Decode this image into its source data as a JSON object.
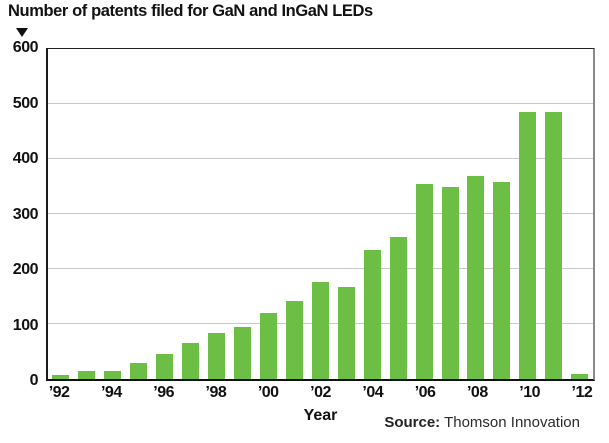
{
  "title": "Number of patents filed for GaN and InGaN LEDs",
  "xlabel": "Year",
  "source": {
    "label": "Source:",
    "text": "Thomson Innovation"
  },
  "colors": {
    "bar": "#6cbe45",
    "grid": "#c8c8c8",
    "axis": "#111111",
    "frame_right": "#8a8a8a",
    "text": "#111111"
  },
  "chart_data": {
    "type": "bar",
    "title": "Number of patents filed for GaN and InGaN LEDs",
    "xlabel": "Year",
    "ylabel": "Number of patents filed",
    "x": [
      1992,
      1993,
      1994,
      1995,
      1996,
      1997,
      1998,
      1999,
      2000,
      2001,
      2002,
      2003,
      2004,
      2005,
      2006,
      2007,
      2008,
      2009,
      2010,
      2011,
      2012
    ],
    "values": [
      8,
      15,
      15,
      30,
      45,
      65,
      84,
      94,
      120,
      141,
      176,
      168,
      234,
      259,
      355,
      350,
      370,
      358,
      485,
      485,
      10
    ],
    "x_tick_labels": [
      "’92",
      "’94",
      "’96",
      "’98",
      "’00",
      "’02",
      "’04",
      "’06",
      "’08",
      "’10",
      "’12"
    ],
    "x_tick_every": 2,
    "y_ticks": [
      0,
      100,
      200,
      300,
      400,
      500,
      600
    ],
    "ylim": [
      0,
      600
    ],
    "grid": "horizontal",
    "legend": "none",
    "bar_color": "#6cbe45"
  }
}
